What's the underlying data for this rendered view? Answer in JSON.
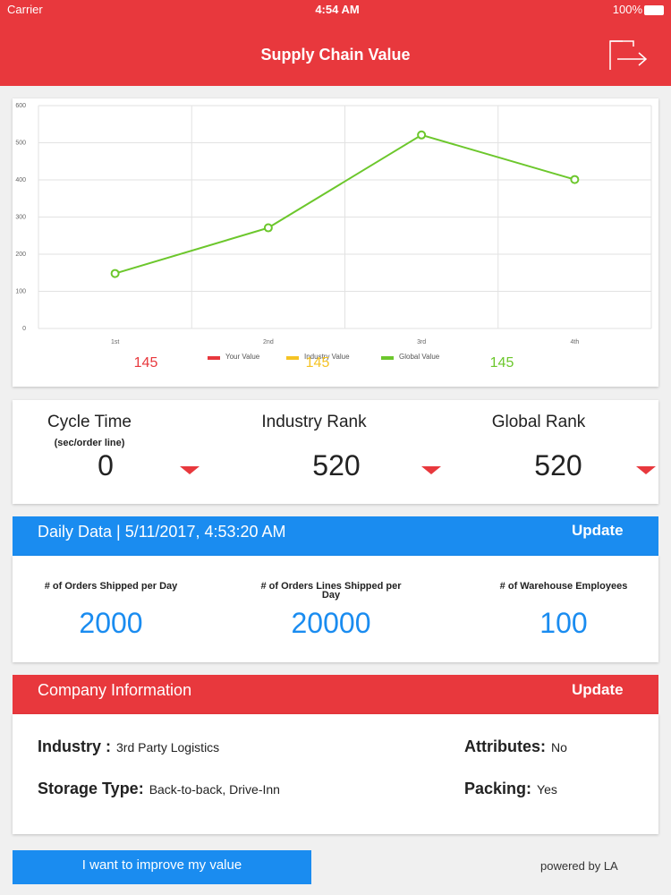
{
  "status_bar": {
    "carrier": "Carrier",
    "time": "4:54 AM",
    "battery": "100%"
  },
  "header": {
    "title": "Supply Chain Value"
  },
  "chart_data": {
    "type": "line",
    "categories": [
      "1st",
      "2nd",
      "3rd",
      "4th"
    ],
    "series": [
      {
        "name": "Your Value",
        "color": "#e8383d",
        "values": [
          null,
          null,
          null,
          null
        ],
        "summary": 145
      },
      {
        "name": "Industry Value",
        "color": "#f5c324",
        "values": [
          null,
          null,
          null,
          null
        ],
        "summary": 145
      },
      {
        "name": "Global Value",
        "color": "#6cc72c",
        "values": [
          148,
          271,
          521,
          401
        ],
        "summary": 145
      }
    ],
    "ylim": [
      0,
      600
    ],
    "yticks": [
      0,
      100,
      200,
      300,
      400,
      500,
      600
    ],
    "grid": true
  },
  "metrics": [
    {
      "title": "Cycle Time",
      "subtitle": "(sec/order line)",
      "value": 0
    },
    {
      "title": "Industry Rank",
      "value": 520
    },
    {
      "title": "Global Rank",
      "value": 520
    }
  ],
  "daily_data": {
    "title": "Daily Data | 5/11/2017, 4:53:20 AM",
    "button": "Update",
    "items": [
      {
        "label": "# of Orders Shipped per Day",
        "value": 2000
      },
      {
        "label": "# of Orders Lines Shipped per Day",
        "value": 20000
      },
      {
        "label": "# of Warehouse Employees",
        "value": 100
      }
    ]
  },
  "company": {
    "title": "Company Information",
    "button": "Update",
    "fields": [
      {
        "label": "Industry :",
        "value": "3rd Party Logistics"
      },
      {
        "label": "Attributes:",
        "value": "No"
      },
      {
        "label": "Storage Type:",
        "value": "Back-to-back, Drive-Inn"
      },
      {
        "label": "Packing:",
        "value": "Yes"
      }
    ]
  },
  "footer": {
    "button": "I want to improve my value",
    "powered": "powered by LA"
  }
}
